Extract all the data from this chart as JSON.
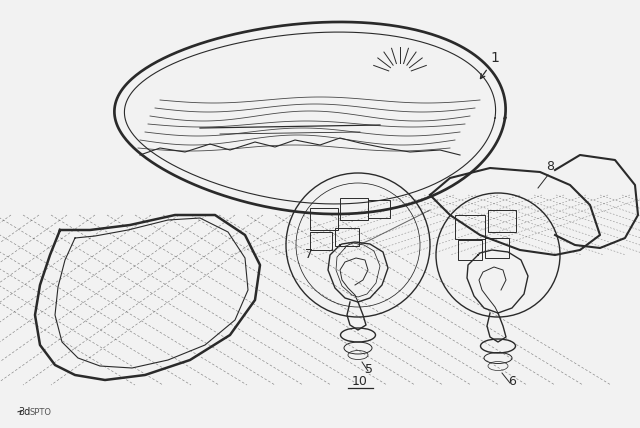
{
  "background_color": "#f2f2f2",
  "line_color": "#2a2a2a",
  "figsize": [
    6.4,
    4.28
  ],
  "dpi": 100,
  "font_size_labels": 9,
  "font_size_bottom": 7
}
